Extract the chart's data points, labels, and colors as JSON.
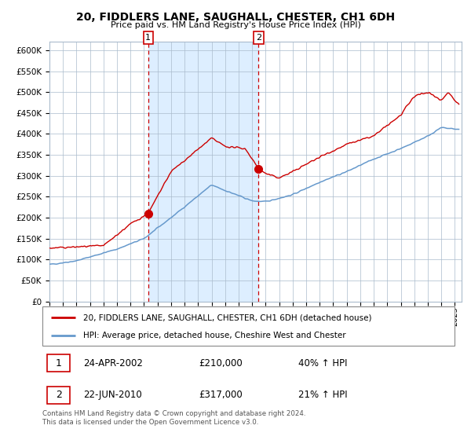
{
  "title": "20, FIDDLERS LANE, SAUGHALL, CHESTER, CH1 6DH",
  "subtitle": "Price paid vs. HM Land Registry's House Price Index (HPI)",
  "legend_line1": "20, FIDDLERS LANE, SAUGHALL, CHESTER, CH1 6DH (detached house)",
  "legend_line2": "HPI: Average price, detached house, Cheshire West and Chester",
  "sale1_date": "24-APR-2002",
  "sale1_price": "£210,000",
  "sale1_hpi": "40% ↑ HPI",
  "sale1_x": 2002.31,
  "sale1_y": 210000,
  "sale2_date": "22-JUN-2010",
  "sale2_price": "£317,000",
  "sale2_hpi": "21% ↑ HPI",
  "sale2_x": 2010.47,
  "sale2_y": 317000,
  "shaded_start": 2002.31,
  "shaded_end": 2010.47,
  "red_line_color": "#cc0000",
  "blue_line_color": "#6699cc",
  "shade_color": "#ddeeff",
  "grid_color": "#aabbcc",
  "background_color": "#ffffff",
  "vline_color": "#cc0000",
  "ylim": [
    0,
    620000
  ],
  "xlim_start": 1995.0,
  "xlim_end": 2025.5,
  "footnote_line1": "Contains HM Land Registry data © Crown copyright and database right 2024.",
  "footnote_line2": "This data is licensed under the Open Government Licence v3.0."
}
